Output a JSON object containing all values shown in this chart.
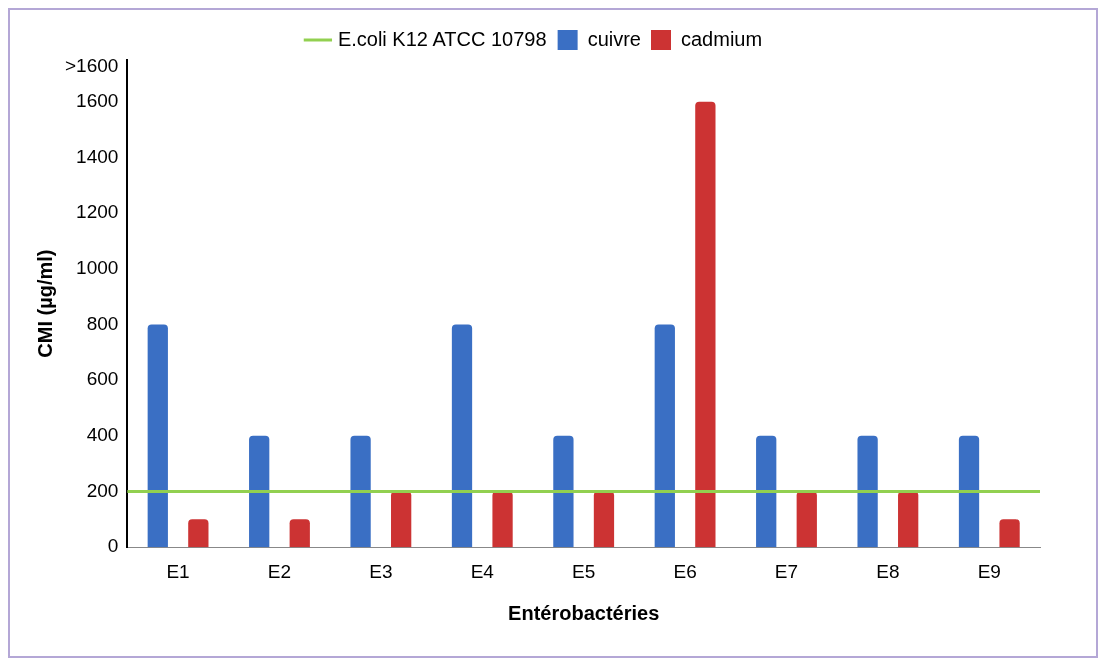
{
  "chart_data": {
    "type": "bar",
    "xlabel": "Entérobactéries",
    "ylabel": "CMI (µg/ml)",
    "categories": [
      "E1",
      "E2",
      "E3",
      "E4",
      "E5",
      "E6",
      "E7",
      "E8",
      "E9"
    ],
    "series": [
      {
        "name": "cuivre",
        "color": "#3a6fc4",
        "values": [
          800,
          400,
          400,
          800,
          400,
          800,
          400,
          400,
          400
        ]
      },
      {
        "name": "cadmium",
        "color": "#cc3333",
        "values": [
          100,
          100,
          200,
          200,
          200,
          1600,
          200,
          200,
          100
        ]
      }
    ],
    "ylim": [
      0,
      1750
    ],
    "yticks": [
      0,
      200,
      400,
      600,
      800,
      1000,
      1200,
      1400,
      1600,
      {
        "value": 1725,
        "label": ">1600"
      }
    ],
    "ref_lines": [
      {
        "axis": "y",
        "value": 200,
        "label": "E.coli K12 ATCC 10798",
        "color": "#92d050"
      }
    ],
    "grid": false,
    "legend": "top"
  }
}
